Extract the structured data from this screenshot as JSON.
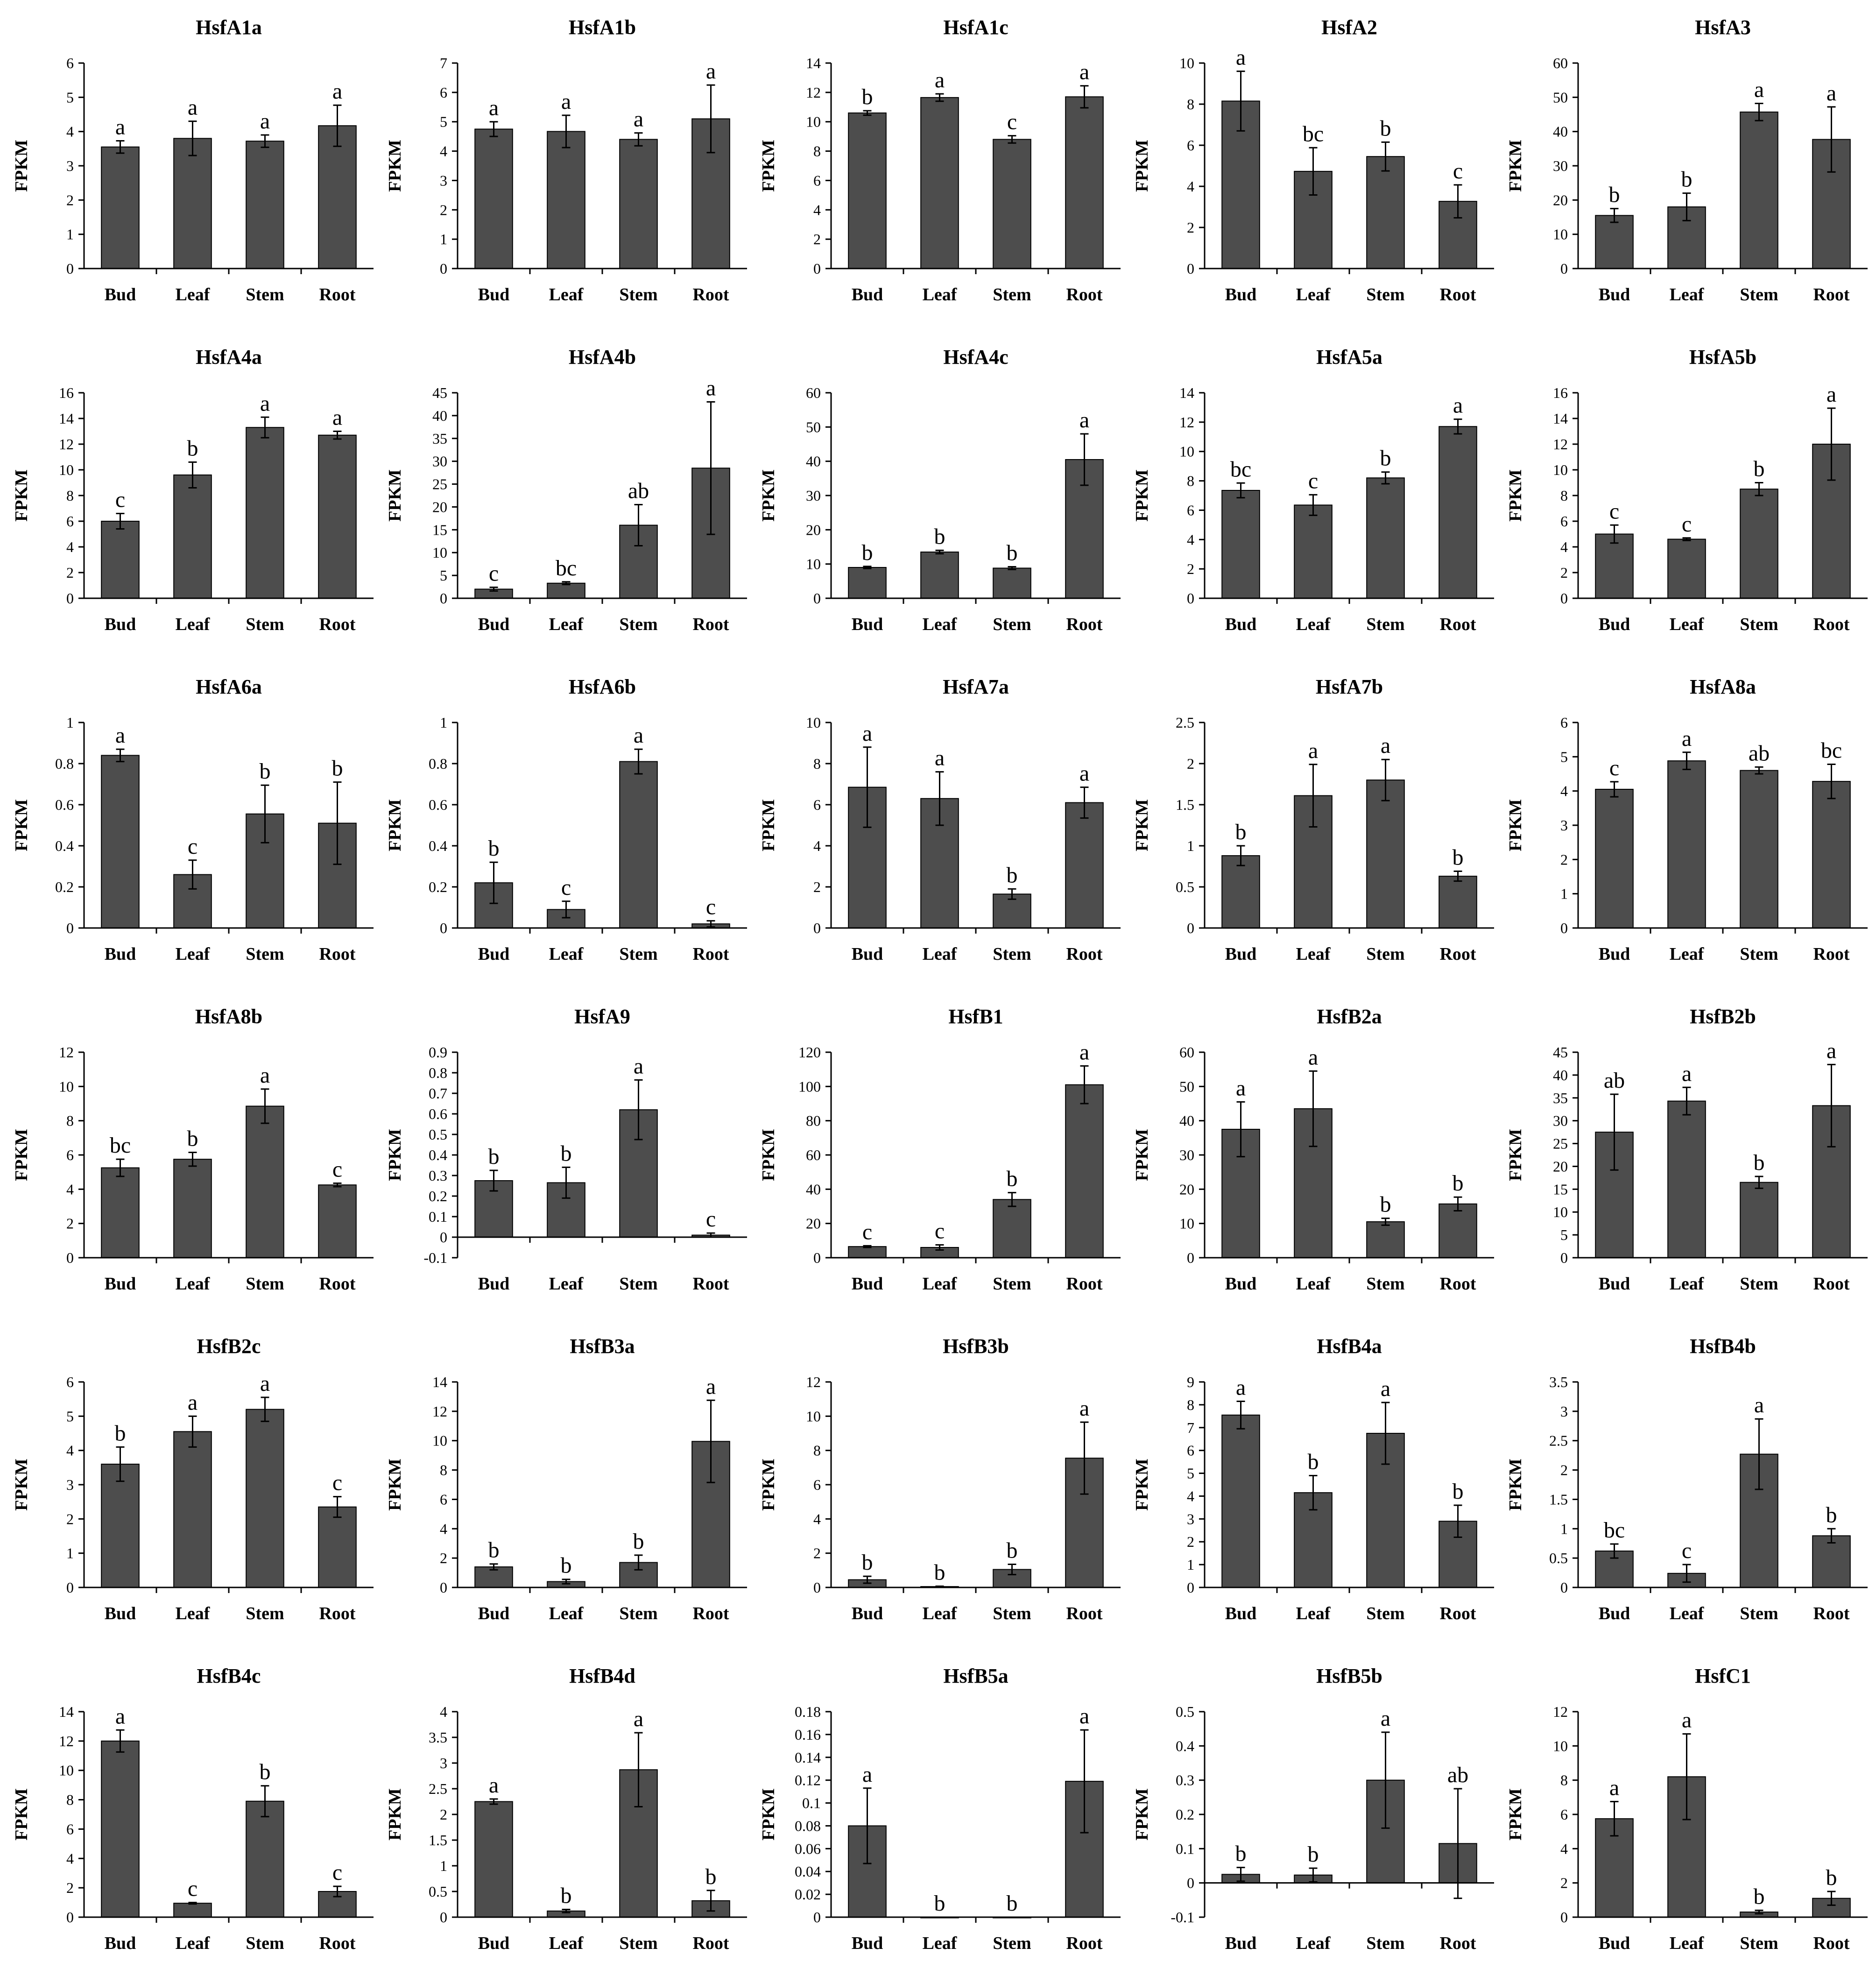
{
  "colors": {
    "bar": "#4d4d4d",
    "axis": "#000000",
    "background": "#ffffff"
  },
  "chart_data": [
    {
      "type": "bar",
      "title": "HsfA1a",
      "ylabel": "FPKM",
      "categories": [
        "Bud",
        "Leaf",
        "Stem",
        "Root"
      ],
      "ylim": [
        0,
        6
      ],
      "yticks": [
        0,
        1,
        2,
        3,
        4,
        5,
        6
      ],
      "values": [
        3.55,
        3.8,
        3.72,
        4.17
      ],
      "errors": [
        0.18,
        0.5,
        0.18,
        0.6
      ],
      "letters": [
        "a",
        "a",
        "a",
        "a"
      ]
    },
    {
      "type": "bar",
      "title": "HsfA1b",
      "ylabel": "FPKM",
      "categories": [
        "Bud",
        "Leaf",
        "Stem",
        "Root"
      ],
      "ylim": [
        0,
        7
      ],
      "yticks": [
        0,
        1,
        2,
        3,
        4,
        5,
        6,
        7
      ],
      "values": [
        4.75,
        4.67,
        4.4,
        5.1
      ],
      "errors": [
        0.25,
        0.55,
        0.22,
        1.15
      ],
      "letters": [
        "a",
        "a",
        "a",
        "a"
      ]
    },
    {
      "type": "bar",
      "title": "HsfA1c",
      "ylabel": "FPKM",
      "categories": [
        "Bud",
        "Leaf",
        "Stem",
        "Root"
      ],
      "ylim": [
        0,
        14
      ],
      "yticks": [
        0,
        2,
        4,
        6,
        8,
        10,
        12,
        14
      ],
      "values": [
        10.6,
        11.65,
        8.8,
        11.7
      ],
      "errors": [
        0.15,
        0.25,
        0.25,
        0.75
      ],
      "letters": [
        "b",
        "a",
        "c",
        "a"
      ]
    },
    {
      "type": "bar",
      "title": "HsfA2",
      "ylabel": "FPKM",
      "categories": [
        "Bud",
        "Leaf",
        "Stem",
        "Root"
      ],
      "ylim": [
        0,
        10
      ],
      "yticks": [
        0,
        2,
        4,
        6,
        8,
        10
      ],
      "values": [
        8.15,
        4.73,
        5.45,
        3.27
      ],
      "errors": [
        1.45,
        1.15,
        0.7,
        0.8
      ],
      "letters": [
        "a",
        "bc",
        "b",
        "c"
      ]
    },
    {
      "type": "bar",
      "title": "HsfA3",
      "ylabel": "FPKM",
      "categories": [
        "Bud",
        "Leaf",
        "Stem",
        "Root"
      ],
      "ylim": [
        0,
        60
      ],
      "yticks": [
        0,
        10,
        20,
        30,
        40,
        50,
        60
      ],
      "values": [
        15.5,
        18,
        45.7,
        37.7
      ],
      "errors": [
        2,
        4,
        2.5,
        9.5
      ],
      "letters": [
        "b",
        "b",
        "a",
        "a"
      ]
    },
    {
      "type": "bar",
      "title": "HsfA4a",
      "ylabel": "FPKM",
      "categories": [
        "Bud",
        "Leaf",
        "Stem",
        "Root"
      ],
      "ylim": [
        0,
        16
      ],
      "yticks": [
        0,
        2,
        4,
        6,
        8,
        10,
        12,
        14,
        16
      ],
      "values": [
        6,
        9.6,
        13.3,
        12.7
      ],
      "errors": [
        0.6,
        1,
        0.8,
        0.3
      ],
      "letters": [
        "c",
        "b",
        "a",
        "a"
      ]
    },
    {
      "type": "bar",
      "title": "HsfA4b",
      "ylabel": "FPKM",
      "categories": [
        "Bud",
        "Leaf",
        "Stem",
        "Root"
      ],
      "ylim": [
        0,
        45
      ],
      "yticks": [
        0,
        5,
        10,
        15,
        20,
        25,
        30,
        35,
        40,
        45
      ],
      "values": [
        2,
        3.3,
        16,
        28.5
      ],
      "errors": [
        0.4,
        0.3,
        4.5,
        14.5
      ],
      "letters": [
        "c",
        "bc",
        "ab",
        "a"
      ]
    },
    {
      "type": "bar",
      "title": "HsfA4c",
      "ylabel": "FPKM",
      "categories": [
        "Bud",
        "Leaf",
        "Stem",
        "Root"
      ],
      "ylim": [
        0,
        60
      ],
      "yticks": [
        0,
        10,
        20,
        30,
        40,
        50,
        60
      ],
      "values": [
        9,
        13.5,
        8.8,
        40.5
      ],
      "errors": [
        0.3,
        0.5,
        0.4,
        7.5
      ],
      "letters": [
        "b",
        "b",
        "b",
        "a"
      ]
    },
    {
      "type": "bar",
      "title": "HsfA5a",
      "ylabel": "FPKM",
      "categories": [
        "Bud",
        "Leaf",
        "Stem",
        "Root"
      ],
      "ylim": [
        0,
        14
      ],
      "yticks": [
        0,
        2,
        4,
        6,
        8,
        10,
        12,
        14
      ],
      "values": [
        7.35,
        6.35,
        8.2,
        11.7
      ],
      "errors": [
        0.5,
        0.7,
        0.4,
        0.5
      ],
      "letters": [
        "bc",
        "c",
        "b",
        "a"
      ]
    },
    {
      "type": "bar",
      "title": "HsfA5b",
      "ylabel": "FPKM",
      "categories": [
        "Bud",
        "Leaf",
        "Stem",
        "Root"
      ],
      "ylim": [
        0,
        16
      ],
      "yticks": [
        0,
        2,
        4,
        6,
        8,
        10,
        12,
        14,
        16
      ],
      "values": [
        5,
        4.6,
        8.5,
        12
      ],
      "errors": [
        0.7,
        0.1,
        0.5,
        2.8
      ],
      "letters": [
        "c",
        "c",
        "b",
        "a"
      ]
    },
    {
      "type": "bar",
      "title": "HsfA6a",
      "ylabel": "FPKM",
      "categories": [
        "Bud",
        "Leaf",
        "Stem",
        "Root"
      ],
      "ylim": [
        0,
        1
      ],
      "yticks": [
        0,
        0.2,
        0.4,
        0.6,
        0.8,
        1
      ],
      "values": [
        0.84,
        0.26,
        0.555,
        0.51
      ],
      "errors": [
        0.03,
        0.07,
        0.14,
        0.2
      ],
      "letters": [
        "a",
        "c",
        "b",
        "b"
      ]
    },
    {
      "type": "bar",
      "title": "HsfA6b",
      "ylabel": "FPKM",
      "categories": [
        "Bud",
        "Leaf",
        "Stem",
        "Root"
      ],
      "ylim": [
        0,
        1
      ],
      "yticks": [
        0,
        0.2,
        0.4,
        0.6,
        0.8,
        1
      ],
      "values": [
        0.22,
        0.09,
        0.81,
        0.02
      ],
      "errors": [
        0.1,
        0.04,
        0.06,
        0.015
      ],
      "letters": [
        "b",
        "c",
        "a",
        "c"
      ]
    },
    {
      "type": "bar",
      "title": "HsfA7a",
      "ylabel": "FPKM",
      "categories": [
        "Bud",
        "Leaf",
        "Stem",
        "Root"
      ],
      "ylim": [
        0,
        10
      ],
      "yticks": [
        0,
        2,
        4,
        6,
        8,
        10
      ],
      "values": [
        6.85,
        6.3,
        1.65,
        6.1
      ],
      "errors": [
        1.95,
        1.3,
        0.25,
        0.75
      ],
      "letters": [
        "a",
        "a",
        "b",
        "a"
      ]
    },
    {
      "type": "bar",
      "title": "HsfA7b",
      "ylabel": "FPKM",
      "categories": [
        "Bud",
        "Leaf",
        "Stem",
        "Root"
      ],
      "ylim": [
        0,
        2.5
      ],
      "yticks": [
        0,
        0.5,
        1,
        1.5,
        2,
        2.5
      ],
      "values": [
        0.88,
        1.61,
        1.8,
        0.63
      ],
      "errors": [
        0.12,
        0.38,
        0.25,
        0.06
      ],
      "letters": [
        "b",
        "a",
        "a",
        "b"
      ]
    },
    {
      "type": "bar",
      "title": "HsfA8a",
      "ylabel": "FPKM",
      "categories": [
        "Bud",
        "Leaf",
        "Stem",
        "Root"
      ],
      "ylim": [
        0,
        6
      ],
      "yticks": [
        0,
        1,
        2,
        3,
        4,
        5,
        6
      ],
      "values": [
        4.05,
        4.88,
        4.6,
        4.28
      ],
      "errors": [
        0.22,
        0.25,
        0.1,
        0.5
      ],
      "letters": [
        "c",
        "a",
        "ab",
        "bc"
      ]
    },
    {
      "type": "bar",
      "title": "HsfA8b",
      "ylabel": "FPKM",
      "categories": [
        "Bud",
        "Leaf",
        "Stem",
        "Root"
      ],
      "ylim": [
        0,
        12
      ],
      "yticks": [
        0,
        2,
        4,
        6,
        8,
        10,
        12
      ],
      "values": [
        5.25,
        5.75,
        8.85,
        4.25
      ],
      "errors": [
        0.5,
        0.4,
        1,
        0.1
      ],
      "letters": [
        "bc",
        "b",
        "a",
        "c"
      ]
    },
    {
      "type": "bar",
      "title": "HsfA9",
      "ylabel": "FPKM",
      "categories": [
        "Bud",
        "Leaf",
        "Stem",
        "Root"
      ],
      "ylim": [
        -0.1,
        0.9
      ],
      "yticks": [
        -0.1,
        0,
        0.1,
        0.2,
        0.3,
        0.4,
        0.5,
        0.6,
        0.7,
        0.8,
        0.9
      ],
      "values": [
        0.275,
        0.265,
        0.62,
        0.01
      ],
      "errors": [
        0.05,
        0.075,
        0.145,
        0.01
      ],
      "letters": [
        "b",
        "b",
        "a",
        "c"
      ]
    },
    {
      "type": "bar",
      "title": "HsfB1",
      "ylabel": "FPKM",
      "categories": [
        "Bud",
        "Leaf",
        "Stem",
        "Root"
      ],
      "ylim": [
        0,
        120
      ],
      "yticks": [
        0,
        20,
        40,
        60,
        80,
        100,
        120
      ],
      "values": [
        6.5,
        6,
        34,
        101
      ],
      "errors": [
        0.5,
        1.5,
        4,
        11
      ],
      "letters": [
        "c",
        "c",
        "b",
        "a"
      ]
    },
    {
      "type": "bar",
      "title": "HsfB2a",
      "ylabel": "FPKM",
      "categories": [
        "Bud",
        "Leaf",
        "Stem",
        "Root"
      ],
      "ylim": [
        0,
        60
      ],
      "yticks": [
        0,
        10,
        20,
        30,
        40,
        50,
        60
      ],
      "values": [
        37.5,
        43.5,
        10.5,
        15.7
      ],
      "errors": [
        8,
        11,
        1,
        2
      ],
      "letters": [
        "a",
        "a",
        "b",
        "b"
      ]
    },
    {
      "type": "bar",
      "title": "HsfB2b",
      "ylabel": "FPKM",
      "categories": [
        "Bud",
        "Leaf",
        "Stem",
        "Root"
      ],
      "ylim": [
        0,
        45
      ],
      "yticks": [
        0,
        5,
        10,
        15,
        20,
        25,
        30,
        35,
        40,
        45
      ],
      "values": [
        27.5,
        34.3,
        16.5,
        33.3
      ],
      "errors": [
        8.3,
        3,
        1.3,
        9
      ],
      "letters": [
        "ab",
        "a",
        "b",
        "a"
      ]
    },
    {
      "type": "bar",
      "title": "HsfB2c",
      "ylabel": "FPKM",
      "categories": [
        "Bud",
        "Leaf",
        "Stem",
        "Root"
      ],
      "ylim": [
        0,
        6
      ],
      "yticks": [
        0,
        1,
        2,
        3,
        4,
        5,
        6
      ],
      "values": [
        3.6,
        4.55,
        5.2,
        2.35
      ],
      "errors": [
        0.5,
        0.45,
        0.35,
        0.3
      ],
      "letters": [
        "b",
        "a",
        "a",
        "c"
      ]
    },
    {
      "type": "bar",
      "title": "HsfB3a",
      "ylabel": "FPKM",
      "categories": [
        "Bud",
        "Leaf",
        "Stem",
        "Root"
      ],
      "ylim": [
        0,
        14
      ],
      "yticks": [
        0,
        2,
        4,
        6,
        8,
        10,
        12,
        14
      ],
      "values": [
        1.4,
        0.4,
        1.7,
        9.95
      ],
      "errors": [
        0.2,
        0.15,
        0.5,
        2.8
      ],
      "letters": [
        "b",
        "b",
        "b",
        "a"
      ]
    },
    {
      "type": "bar",
      "title": "HsfB3b",
      "ylabel": "FPKM",
      "categories": [
        "Bud",
        "Leaf",
        "Stem",
        "Root"
      ],
      "ylim": [
        0,
        12
      ],
      "yticks": [
        0,
        2,
        4,
        6,
        8,
        10,
        12
      ],
      "values": [
        0.45,
        0.05,
        1.05,
        7.55
      ],
      "errors": [
        0.2,
        0.02,
        0.3,
        2.1
      ],
      "letters": [
        "b",
        "b",
        "b",
        "a"
      ]
    },
    {
      "type": "bar",
      "title": "HsfB4a",
      "ylabel": "FPKM",
      "categories": [
        "Bud",
        "Leaf",
        "Stem",
        "Root"
      ],
      "ylim": [
        0,
        9
      ],
      "yticks": [
        0,
        1,
        2,
        3,
        4,
        5,
        6,
        7,
        8,
        9
      ],
      "values": [
        7.55,
        4.15,
        6.75,
        2.9
      ],
      "errors": [
        0.6,
        0.75,
        1.35,
        0.7
      ],
      "letters": [
        "a",
        "b",
        "a",
        "b"
      ]
    },
    {
      "type": "bar",
      "title": "HsfB4b",
      "ylabel": "FPKM",
      "categories": [
        "Bud",
        "Leaf",
        "Stem",
        "Root"
      ],
      "ylim": [
        0,
        3.5
      ],
      "yticks": [
        0,
        0.5,
        1,
        1.5,
        2,
        2.5,
        3,
        3.5
      ],
      "values": [
        0.62,
        0.24,
        2.27,
        0.88
      ],
      "errors": [
        0.12,
        0.15,
        0.6,
        0.12
      ],
      "letters": [
        "bc",
        "c",
        "a",
        "b"
      ]
    },
    {
      "type": "bar",
      "title": "HsfB4c",
      "ylabel": "FPKM",
      "categories": [
        "Bud",
        "Leaf",
        "Stem",
        "Root"
      ],
      "ylim": [
        0,
        14
      ],
      "yticks": [
        0,
        2,
        4,
        6,
        8,
        10,
        12,
        14
      ],
      "values": [
        12,
        0.95,
        7.9,
        1.75
      ],
      "errors": [
        0.75,
        0.05,
        1.05,
        0.35
      ],
      "letters": [
        "a",
        "c",
        "b",
        "c"
      ]
    },
    {
      "type": "bar",
      "title": "HsfB4d",
      "ylabel": "FPKM",
      "categories": [
        "Bud",
        "Leaf",
        "Stem",
        "Root"
      ],
      "ylim": [
        0,
        4
      ],
      "yticks": [
        0,
        0.5,
        1,
        1.5,
        2,
        2.5,
        3,
        3.5,
        4
      ],
      "values": [
        2.25,
        0.12,
        2.87,
        0.32
      ],
      "errors": [
        0.05,
        0.03,
        0.72,
        0.2
      ],
      "letters": [
        "a",
        "b",
        "a",
        "b"
      ]
    },
    {
      "type": "bar",
      "title": "HsfB5a",
      "ylabel": "FPKM",
      "categories": [
        "Bud",
        "Leaf",
        "Stem",
        "Root"
      ],
      "ylim": [
        0,
        0.18
      ],
      "yticks": [
        0,
        0.02,
        0.04,
        0.06,
        0.08,
        0.1,
        0.12,
        0.14,
        0.16,
        0.18
      ],
      "values": [
        0.08,
        0,
        0,
        0.119
      ],
      "errors": [
        0.033,
        0,
        0,
        0.045
      ],
      "letters": [
        "a",
        "b",
        "b",
        "a"
      ]
    },
    {
      "type": "bar",
      "title": "HsfB5b",
      "ylabel": "FPKM",
      "categories": [
        "Bud",
        "Leaf",
        "Stem",
        "Root"
      ],
      "ylim": [
        -0.1,
        0.5
      ],
      "yticks": [
        -0.1,
        0,
        0.1,
        0.2,
        0.3,
        0.4,
        0.5
      ],
      "values": [
        0.025,
        0.023,
        0.3,
        0.115
      ],
      "errors": [
        0.02,
        0.02,
        0.14,
        0.16
      ],
      "letters": [
        "b",
        "b",
        "a",
        "ab"
      ]
    },
    {
      "type": "bar",
      "title": "HsfC1",
      "ylabel": "FPKM",
      "categories": [
        "Bud",
        "Leaf",
        "Stem",
        "Root"
      ],
      "ylim": [
        0,
        12
      ],
      "yticks": [
        0,
        2,
        4,
        6,
        8,
        10,
        12
      ],
      "values": [
        5.75,
        8.2,
        0.3,
        1.1
      ],
      "errors": [
        1,
        2.5,
        0.1,
        0.4
      ],
      "letters": [
        "a",
        "a",
        "b",
        "b"
      ]
    }
  ]
}
